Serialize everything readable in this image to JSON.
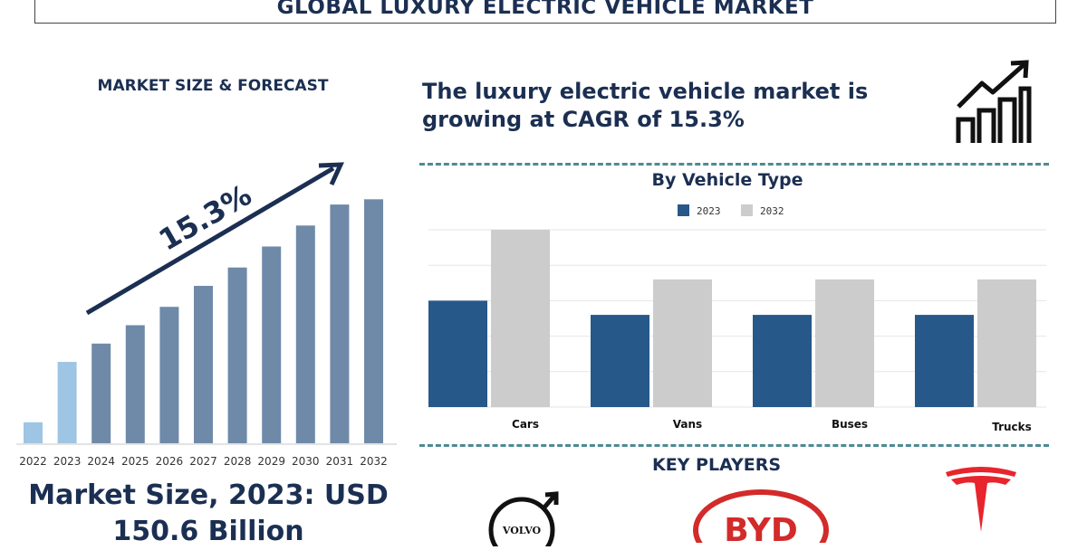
{
  "title": "GLOBAL LUXURY ELECTRIC VEHICLE MARKET",
  "left_panel": {
    "heading": "MARKET SIZE & FORECAST",
    "cagr_label": "15.3%",
    "market_size_line1": "Market Size, 2023: USD",
    "market_size_line2": "150.6 Billion"
  },
  "headline": {
    "line1": "The luxury electric vehicle market is",
    "line2": "growing at CAGR of 15.3%"
  },
  "key_players": {
    "heading": "KEY PLAYERS",
    "logos": [
      {
        "name": "Volvo",
        "text": "VOLVO",
        "icon": "volvo-logo"
      },
      {
        "name": "BYD",
        "text": "BYD",
        "icon": "byd-logo"
      },
      {
        "name": "Tesla",
        "text": "",
        "icon": "tesla-logo"
      }
    ]
  },
  "colors": {
    "navy": "#1b2f52",
    "bar_2023": "#27588a",
    "bar_2032": "#cccccc",
    "forecast_bar": "#6f8aa8",
    "highlight_bar": "#9ec5e3",
    "byd_red": "#d32a2a",
    "tesla_red": "#e8242c",
    "dash": "#4e8a92"
  },
  "chart_data": [
    {
      "type": "bar",
      "title": "",
      "categories": [
        "2022",
        "2023",
        "2024",
        "2025",
        "2026",
        "2027",
        "2028",
        "2029",
        "2030",
        "2031",
        "2032"
      ],
      "values": [
        8,
        31,
        38,
        45,
        52,
        60,
        67,
        75,
        83,
        91,
        93
      ],
      "highlight_index": 1,
      "annotation": "15.3%",
      "xlabel": "",
      "ylabel": "",
      "ylim": [
        0,
        100
      ],
      "grid": false
    },
    {
      "type": "bar",
      "title": "By Vehicle Type",
      "categories": [
        "Cars",
        "Vans",
        "Buses",
        "Trucks"
      ],
      "series": [
        {
          "name": "2023",
          "values": [
            30,
            26,
            26,
            26
          ]
        },
        {
          "name": "2032",
          "values": [
            50,
            36,
            36,
            36
          ]
        }
      ],
      "xlabel": "",
      "ylabel": "",
      "ylim": [
        0,
        50
      ],
      "grid": true,
      "legend": "top-center"
    }
  ]
}
